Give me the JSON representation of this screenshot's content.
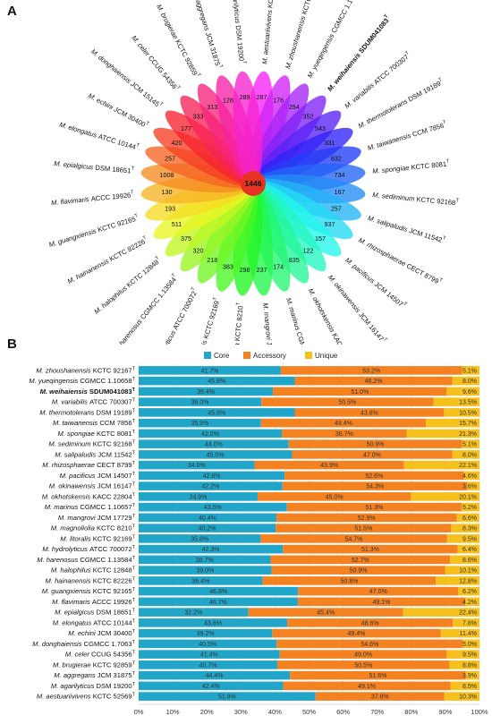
{
  "panel_a_label": "A",
  "panel_b_label": "B",
  "chart_data": [
    {
      "type": "flower",
      "center_label": "1446",
      "petals": [
        {
          "species": "M. aestuariivivens",
          "strain": "KCTC 52569",
          "value": 287
        },
        {
          "species": "M. zhoushanensis",
          "strain": "KCTC 92167",
          "value": 176
        },
        {
          "species": "M. yueqingensis",
          "strain": "CGMCC 1.10658",
          "value": 254
        },
        {
          "species": "M. weihaiensis",
          "strain": "SDUM041083",
          "value": 352,
          "bold": true
        },
        {
          "species": "M. variabilis",
          "strain": "ATCC 700307",
          "value": 543
        },
        {
          "species": "M. thermotolerans",
          "strain": "DSM 19189",
          "value": 331
        },
        {
          "species": "M. taiwanensis",
          "strain": "CCM 7856",
          "value": 632
        },
        {
          "species": "M. spongiae",
          "strain": "KCTC 8081",
          "value": 734
        },
        {
          "species": "M. sediminum",
          "strain": "KCTC 92168",
          "value": 167
        },
        {
          "species": "M. salipaludis",
          "strain": "JCM 11542",
          "value": 257
        },
        {
          "species": "M. rhizosphaerae",
          "strain": "CECT 8799",
          "value": 937
        },
        {
          "species": "M. pacificus",
          "strain": "JCM 14507",
          "value": 157
        },
        {
          "species": "M. okinawensis",
          "strain": "JCM 16147",
          "value": 122
        },
        {
          "species": "M. okhotskensis",
          "strain": "KACC 22804",
          "value": 835
        },
        {
          "species": "M. marinus",
          "strain": "CGMCC 1.10657",
          "value": 174
        },
        {
          "species": "M. mangrovi",
          "strain": "JCM 17729",
          "value": 237
        },
        {
          "species": "M. magnoliolia",
          "strain": "KCTC 8210",
          "value": 298
        },
        {
          "species": "M. litoralis",
          "strain": "KCTC 92169",
          "value": 383
        },
        {
          "species": "M. hydrolyticus",
          "strain": "ATCC 700072",
          "value": 218
        },
        {
          "species": "M. harenosus",
          "strain": "CGMCC 1.13584",
          "value": 320
        },
        {
          "species": "M. halophilus",
          "strain": "KCTC 12848",
          "value": 375
        },
        {
          "species": "M. hainanensis",
          "strain": "KCTC 82226",
          "value": 511
        },
        {
          "species": "M. guangxiensis",
          "strain": "KCTC 92165",
          "value": 193
        },
        {
          "species": "M. flavimaris",
          "strain": "ACCC 19926",
          "value": 130
        },
        {
          "species": "M. epialgicus",
          "strain": "DSM 18651",
          "value": 1008
        },
        {
          "species": "M. elongatus",
          "strain": "ATCC 10144",
          "value": 257
        },
        {
          "species": "M. echini",
          "strain": "JCM 30400",
          "value": 420
        },
        {
          "species": "M. donghaiensis",
          "strain": "JCM 15145",
          "value": 177
        },
        {
          "species": "M. celer",
          "strain": "CCUG 54356",
          "value": 333
        },
        {
          "species": "M. brugierae",
          "strain": "KCTC 92859",
          "value": 313
        },
        {
          "species": "M. aggregans",
          "strain": "JCM 31875",
          "value": 128
        },
        {
          "species": "M. agarilyticus",
          "strain": "DSM 19200",
          "value": 289
        }
      ]
    },
    {
      "type": "bar",
      "orientation": "horizontal",
      "stacked": true,
      "legend": [
        "Core",
        "Accessory",
        "Unique"
      ],
      "legend_position": "top",
      "colors": {
        "Core": "#21a6c9",
        "Accessory": "#f58220",
        "Unique": "#f6c11c"
      },
      "xlim": [
        0,
        100
      ],
      "xticks": [
        "0%",
        "10%",
        "20%",
        "30%",
        "40%",
        "50%",
        "60%",
        "70%",
        "80%",
        "90%",
        "100%"
      ],
      "rows": [
        {
          "species": "M. zhoushanensis",
          "strain": "KCTC 92167",
          "core": 41.7,
          "accessory": 53.2,
          "unique": 5.1
        },
        {
          "species": "M. yueqingensis",
          "strain": "CGMCC 1.10658",
          "core": 45.8,
          "accessory": 46.2,
          "unique": 8.0
        },
        {
          "species": "M. weihaiensis",
          "strain": "SDUM041083",
          "core": 39.4,
          "accessory": 51.0,
          "unique": 9.6,
          "bold": true
        },
        {
          "species": "M. variabilis",
          "strain": "ATCC 700307",
          "core": 36.0,
          "accessory": 50.5,
          "unique": 13.5
        },
        {
          "species": "M. thermotolerans",
          "strain": "DSM 19189",
          "core": 45.8,
          "accessory": 43.8,
          "unique": 10.5
        },
        {
          "species": "M. taiwanensis",
          "strain": "CCM 7856",
          "core": 35.9,
          "accessory": 48.4,
          "unique": 15.7
        },
        {
          "species": "M. spongiae",
          "strain": "KCTC 8081",
          "core": 42.0,
          "accessory": 36.7,
          "unique": 21.3
        },
        {
          "species": "M. sediminum",
          "strain": "KCTC 92168",
          "core": 44.0,
          "accessory": 50.9,
          "unique": 5.1
        },
        {
          "species": "M. salipaludis",
          "strain": "JCM 11542",
          "core": 45.0,
          "accessory": 47.0,
          "unique": 8.0
        },
        {
          "species": "M. rhizosphaerae",
          "strain": "CECT 8799",
          "core": 34.0,
          "accessory": 43.9,
          "unique": 22.1
        },
        {
          "species": "M. pacificus",
          "strain": "JCM 14507",
          "core": 42.8,
          "accessory": 52.6,
          "unique": 4.6
        },
        {
          "species": "M. okinawensis",
          "strain": "JCM 16147",
          "core": 42.2,
          "accessory": 54.3,
          "unique": 3.6
        },
        {
          "species": "M. okhotskensis",
          "strain": "KACC 22804",
          "core": 34.9,
          "accessory": 45.0,
          "unique": 20.1
        },
        {
          "species": "M. marinus",
          "strain": "CGMCC 1.10657",
          "core": 43.5,
          "accessory": 51.3,
          "unique": 5.2
        },
        {
          "species": "M. mangrovi",
          "strain": "JCM 17729",
          "core": 40.4,
          "accessory": 52.9,
          "unique": 6.6
        },
        {
          "species": "M. magnoliolia",
          "strain": "KCTC 8210",
          "core": 40.2,
          "accessory": 51.5,
          "unique": 8.3
        },
        {
          "species": "M. litoralis",
          "strain": "KCTC 92169",
          "core": 35.8,
          "accessory": 54.7,
          "unique": 9.5
        },
        {
          "species": "M. hydrolyticus",
          "strain": "ATCC 700072",
          "core": 42.3,
          "accessory": 51.3,
          "unique": 6.4
        },
        {
          "species": "M. harenosus",
          "strain": "CGMCC 1.13584",
          "core": 38.7,
          "accessory": 52.7,
          "unique": 8.6
        },
        {
          "species": "M. halophilus",
          "strain": "KCTC 12848",
          "core": 39.0,
          "accessory": 50.9,
          "unique": 10.1
        },
        {
          "species": "M. hainanensis",
          "strain": "KCTC 82226",
          "core": 36.4,
          "accessory": 50.8,
          "unique": 12.8
        },
        {
          "species": "M. guangxiensis",
          "strain": "KCTC 92165",
          "core": 46.8,
          "accessory": 47.0,
          "unique": 6.2
        },
        {
          "species": "M. flavimaris",
          "strain": "ACCC 19926",
          "core": 46.7,
          "accessory": 49.1,
          "unique": 4.2
        },
        {
          "species": "M. epialgicus",
          "strain": "DSM 18651",
          "core": 32.2,
          "accessory": 45.4,
          "unique": 22.4
        },
        {
          "species": "M. elongatus",
          "strain": "ATCC 10144",
          "core": 43.6,
          "accessory": 48.6,
          "unique": 7.8
        },
        {
          "species": "M. echini",
          "strain": "JCM 30400",
          "core": 39.2,
          "accessory": 49.4,
          "unique": 11.4
        },
        {
          "species": "M. donghaiensis",
          "strain": "CGMCC 1.7063",
          "core": 40.5,
          "accessory": 54.6,
          "unique": 5.0
        },
        {
          "species": "M. celer",
          "strain": "CCUG 54356",
          "core": 41.4,
          "accessory": 49.0,
          "unique": 9.5
        },
        {
          "species": "M. brugierae",
          "strain": "KCTC 92859",
          "core": 40.7,
          "accessory": 50.5,
          "unique": 8.8
        },
        {
          "species": "M. aggregans",
          "strain": "JCM 31875",
          "core": 44.4,
          "accessory": 51.6,
          "unique": 3.9
        },
        {
          "species": "M. agarilyticus",
          "strain": "DSM 19200",
          "core": 42.4,
          "accessory": 49.1,
          "unique": 8.5
        },
        {
          "species": "M. aestuariivivens",
          "strain": "KCTC 52569",
          "core": 51.9,
          "accessory": 37.8,
          "unique": 10.3
        }
      ]
    }
  ]
}
